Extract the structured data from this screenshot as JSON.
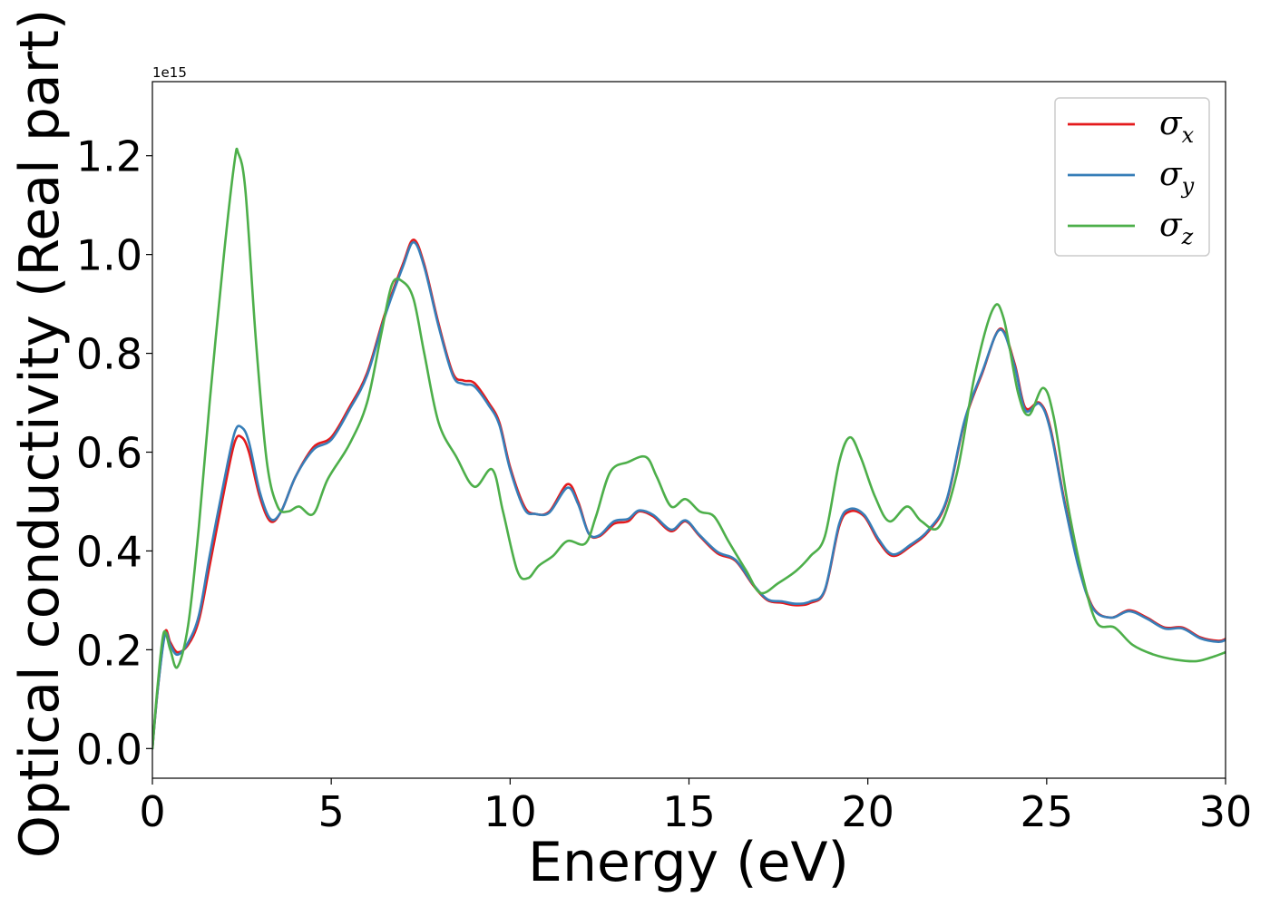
{
  "colors": {
    "sigma_x": "#e41a1c",
    "sigma_y": "#377eb8",
    "sigma_z": "#4daf4a"
  },
  "chart_data": {
    "type": "line",
    "xlabel": "Energy (eV)",
    "ylabel": "Optical conductivity (Real part)",
    "y_offset_label": "1e15",
    "xlim": [
      0,
      30
    ],
    "ylim": [
      -0.06,
      1.35
    ],
    "y_scale_factor": 1000000000000000.0,
    "xticks": [
      0,
      5,
      10,
      15,
      20,
      25,
      30
    ],
    "xtick_labels": [
      "0",
      "5",
      "10",
      "15",
      "20",
      "25",
      "30"
    ],
    "yticks": [
      0.0,
      0.2,
      0.4,
      0.6,
      0.8,
      1.0,
      1.2
    ],
    "ytick_labels": [
      "0.0",
      "0.2",
      "0.4",
      "0.6",
      "0.8",
      "1.0",
      "1.2"
    ],
    "grid": false,
    "legend_position": "top-right",
    "series": [
      {
        "name": "σx",
        "name_base": "σ",
        "name_sub": "x",
        "color_key": "sigma_x",
        "points": [
          [
            0.0,
            0.0
          ],
          [
            0.15,
            0.12
          ],
          [
            0.35,
            0.235
          ],
          [
            0.5,
            0.215
          ],
          [
            0.7,
            0.195
          ],
          [
            1.0,
            0.21
          ],
          [
            1.3,
            0.26
          ],
          [
            1.6,
            0.37
          ],
          [
            2.0,
            0.52
          ],
          [
            2.3,
            0.62
          ],
          [
            2.5,
            0.63
          ],
          [
            2.7,
            0.6
          ],
          [
            3.0,
            0.51
          ],
          [
            3.3,
            0.46
          ],
          [
            3.6,
            0.48
          ],
          [
            4.0,
            0.55
          ],
          [
            4.5,
            0.61
          ],
          [
            5.0,
            0.63
          ],
          [
            5.5,
            0.69
          ],
          [
            6.0,
            0.76
          ],
          [
            6.5,
            0.88
          ],
          [
            7.0,
            0.98
          ],
          [
            7.3,
            1.03
          ],
          [
            7.6,
            0.98
          ],
          [
            8.0,
            0.86
          ],
          [
            8.4,
            0.76
          ],
          [
            8.7,
            0.745
          ],
          [
            9.0,
            0.74
          ],
          [
            9.4,
            0.7
          ],
          [
            9.7,
            0.66
          ],
          [
            10.0,
            0.57
          ],
          [
            10.4,
            0.49
          ],
          [
            10.7,
            0.475
          ],
          [
            11.1,
            0.48
          ],
          [
            11.6,
            0.535
          ],
          [
            11.9,
            0.5
          ],
          [
            12.2,
            0.435
          ],
          [
            12.5,
            0.43
          ],
          [
            12.9,
            0.455
          ],
          [
            13.3,
            0.46
          ],
          [
            13.6,
            0.48
          ],
          [
            14.0,
            0.47
          ],
          [
            14.5,
            0.44
          ],
          [
            14.9,
            0.46
          ],
          [
            15.3,
            0.43
          ],
          [
            15.8,
            0.395
          ],
          [
            16.3,
            0.38
          ],
          [
            16.8,
            0.33
          ],
          [
            17.2,
            0.3
          ],
          [
            17.6,
            0.295
          ],
          [
            18.0,
            0.29
          ],
          [
            18.4,
            0.295
          ],
          [
            18.8,
            0.32
          ],
          [
            19.2,
            0.45
          ],
          [
            19.5,
            0.48
          ],
          [
            19.9,
            0.47
          ],
          [
            20.3,
            0.42
          ],
          [
            20.7,
            0.39
          ],
          [
            21.2,
            0.41
          ],
          [
            21.7,
            0.44
          ],
          [
            22.2,
            0.5
          ],
          [
            22.7,
            0.66
          ],
          [
            23.2,
            0.76
          ],
          [
            23.7,
            0.85
          ],
          [
            24.1,
            0.78
          ],
          [
            24.4,
            0.69
          ],
          [
            24.8,
            0.7
          ],
          [
            25.1,
            0.65
          ],
          [
            25.5,
            0.5
          ],
          [
            25.9,
            0.37
          ],
          [
            26.3,
            0.285
          ],
          [
            26.8,
            0.265
          ],
          [
            27.3,
            0.28
          ],
          [
            27.8,
            0.265
          ],
          [
            28.3,
            0.245
          ],
          [
            28.8,
            0.245
          ],
          [
            29.3,
            0.225
          ],
          [
            29.8,
            0.218
          ],
          [
            30.0,
            0.222
          ]
        ]
      },
      {
        "name": "σy",
        "name_base": "σ",
        "name_sub": "y",
        "color_key": "sigma_y",
        "points": [
          [
            0.0,
            0.0
          ],
          [
            0.15,
            0.12
          ],
          [
            0.35,
            0.23
          ],
          [
            0.5,
            0.21
          ],
          [
            0.7,
            0.19
          ],
          [
            1.0,
            0.215
          ],
          [
            1.3,
            0.27
          ],
          [
            1.6,
            0.39
          ],
          [
            2.0,
            0.54
          ],
          [
            2.3,
            0.64
          ],
          [
            2.5,
            0.65
          ],
          [
            2.7,
            0.62
          ],
          [
            3.0,
            0.52
          ],
          [
            3.3,
            0.465
          ],
          [
            3.6,
            0.48
          ],
          [
            4.0,
            0.55
          ],
          [
            4.5,
            0.605
          ],
          [
            5.0,
            0.625
          ],
          [
            5.5,
            0.685
          ],
          [
            6.0,
            0.755
          ],
          [
            6.5,
            0.875
          ],
          [
            7.0,
            0.975
          ],
          [
            7.3,
            1.025
          ],
          [
            7.6,
            0.975
          ],
          [
            8.0,
            0.855
          ],
          [
            8.4,
            0.755
          ],
          [
            8.7,
            0.738
          ],
          [
            9.0,
            0.733
          ],
          [
            9.4,
            0.695
          ],
          [
            9.7,
            0.655
          ],
          [
            10.0,
            0.565
          ],
          [
            10.4,
            0.485
          ],
          [
            10.7,
            0.475
          ],
          [
            11.1,
            0.478
          ],
          [
            11.6,
            0.528
          ],
          [
            11.9,
            0.495
          ],
          [
            12.2,
            0.435
          ],
          [
            12.5,
            0.432
          ],
          [
            12.9,
            0.46
          ],
          [
            13.3,
            0.465
          ],
          [
            13.6,
            0.482
          ],
          [
            14.0,
            0.473
          ],
          [
            14.5,
            0.443
          ],
          [
            14.9,
            0.462
          ],
          [
            15.3,
            0.432
          ],
          [
            15.8,
            0.398
          ],
          [
            16.3,
            0.382
          ],
          [
            16.8,
            0.332
          ],
          [
            17.2,
            0.302
          ],
          [
            17.6,
            0.298
          ],
          [
            18.0,
            0.293
          ],
          [
            18.4,
            0.298
          ],
          [
            18.8,
            0.322
          ],
          [
            19.2,
            0.455
          ],
          [
            19.5,
            0.485
          ],
          [
            19.9,
            0.473
          ],
          [
            20.3,
            0.424
          ],
          [
            20.7,
            0.393
          ],
          [
            21.2,
            0.413
          ],
          [
            21.7,
            0.443
          ],
          [
            22.2,
            0.503
          ],
          [
            22.7,
            0.663
          ],
          [
            23.2,
            0.763
          ],
          [
            23.7,
            0.848
          ],
          [
            24.1,
            0.775
          ],
          [
            24.4,
            0.685
          ],
          [
            24.8,
            0.698
          ],
          [
            25.1,
            0.645
          ],
          [
            25.5,
            0.495
          ],
          [
            25.9,
            0.365
          ],
          [
            26.3,
            0.283
          ],
          [
            26.8,
            0.265
          ],
          [
            27.3,
            0.278
          ],
          [
            27.8,
            0.263
          ],
          [
            28.3,
            0.243
          ],
          [
            28.8,
            0.243
          ],
          [
            29.3,
            0.223
          ],
          [
            29.8,
            0.216
          ],
          [
            30.0,
            0.22
          ]
        ]
      },
      {
        "name": "σz",
        "name_base": "σ",
        "name_sub": "z",
        "color_key": "sigma_z",
        "points": [
          [
            0.0,
            0.0
          ],
          [
            0.15,
            0.13
          ],
          [
            0.32,
            0.235
          ],
          [
            0.5,
            0.2
          ],
          [
            0.7,
            0.165
          ],
          [
            1.0,
            0.25
          ],
          [
            1.3,
            0.45
          ],
          [
            1.6,
            0.7
          ],
          [
            2.0,
            1.0
          ],
          [
            2.3,
            1.19
          ],
          [
            2.4,
            1.205
          ],
          [
            2.6,
            1.13
          ],
          [
            2.9,
            0.82
          ],
          [
            3.2,
            0.58
          ],
          [
            3.5,
            0.49
          ],
          [
            3.8,
            0.48
          ],
          [
            4.1,
            0.49
          ],
          [
            4.5,
            0.475
          ],
          [
            4.9,
            0.545
          ],
          [
            5.5,
            0.615
          ],
          [
            6.0,
            0.7
          ],
          [
            6.4,
            0.84
          ],
          [
            6.7,
            0.94
          ],
          [
            7.0,
            0.945
          ],
          [
            7.3,
            0.91
          ],
          [
            7.6,
            0.8
          ],
          [
            8.0,
            0.66
          ],
          [
            8.5,
            0.59
          ],
          [
            9.0,
            0.53
          ],
          [
            9.5,
            0.565
          ],
          [
            9.8,
            0.48
          ],
          [
            10.2,
            0.36
          ],
          [
            10.5,
            0.345
          ],
          [
            10.8,
            0.37
          ],
          [
            11.2,
            0.39
          ],
          [
            11.6,
            0.42
          ],
          [
            12.1,
            0.415
          ],
          [
            12.4,
            0.47
          ],
          [
            12.8,
            0.56
          ],
          [
            13.3,
            0.58
          ],
          [
            13.8,
            0.59
          ],
          [
            14.1,
            0.55
          ],
          [
            14.5,
            0.49
          ],
          [
            14.9,
            0.505
          ],
          [
            15.3,
            0.48
          ],
          [
            15.7,
            0.47
          ],
          [
            16.1,
            0.42
          ],
          [
            16.6,
            0.36
          ],
          [
            17.0,
            0.315
          ],
          [
            17.5,
            0.335
          ],
          [
            18.0,
            0.36
          ],
          [
            18.4,
            0.39
          ],
          [
            18.8,
            0.43
          ],
          [
            19.2,
            0.58
          ],
          [
            19.5,
            0.63
          ],
          [
            19.8,
            0.59
          ],
          [
            20.2,
            0.51
          ],
          [
            20.6,
            0.46
          ],
          [
            21.1,
            0.49
          ],
          [
            21.5,
            0.46
          ],
          [
            22.0,
            0.45
          ],
          [
            22.5,
            0.56
          ],
          [
            23.0,
            0.76
          ],
          [
            23.5,
            0.89
          ],
          [
            23.8,
            0.87
          ],
          [
            24.2,
            0.72
          ],
          [
            24.5,
            0.675
          ],
          [
            24.9,
            0.73
          ],
          [
            25.2,
            0.67
          ],
          [
            25.6,
            0.49
          ],
          [
            26.0,
            0.35
          ],
          [
            26.4,
            0.255
          ],
          [
            26.9,
            0.245
          ],
          [
            27.4,
            0.21
          ],
          [
            28.0,
            0.19
          ],
          [
            28.6,
            0.18
          ],
          [
            29.2,
            0.177
          ],
          [
            29.7,
            0.187
          ],
          [
            30.0,
            0.195
          ]
        ]
      }
    ]
  }
}
